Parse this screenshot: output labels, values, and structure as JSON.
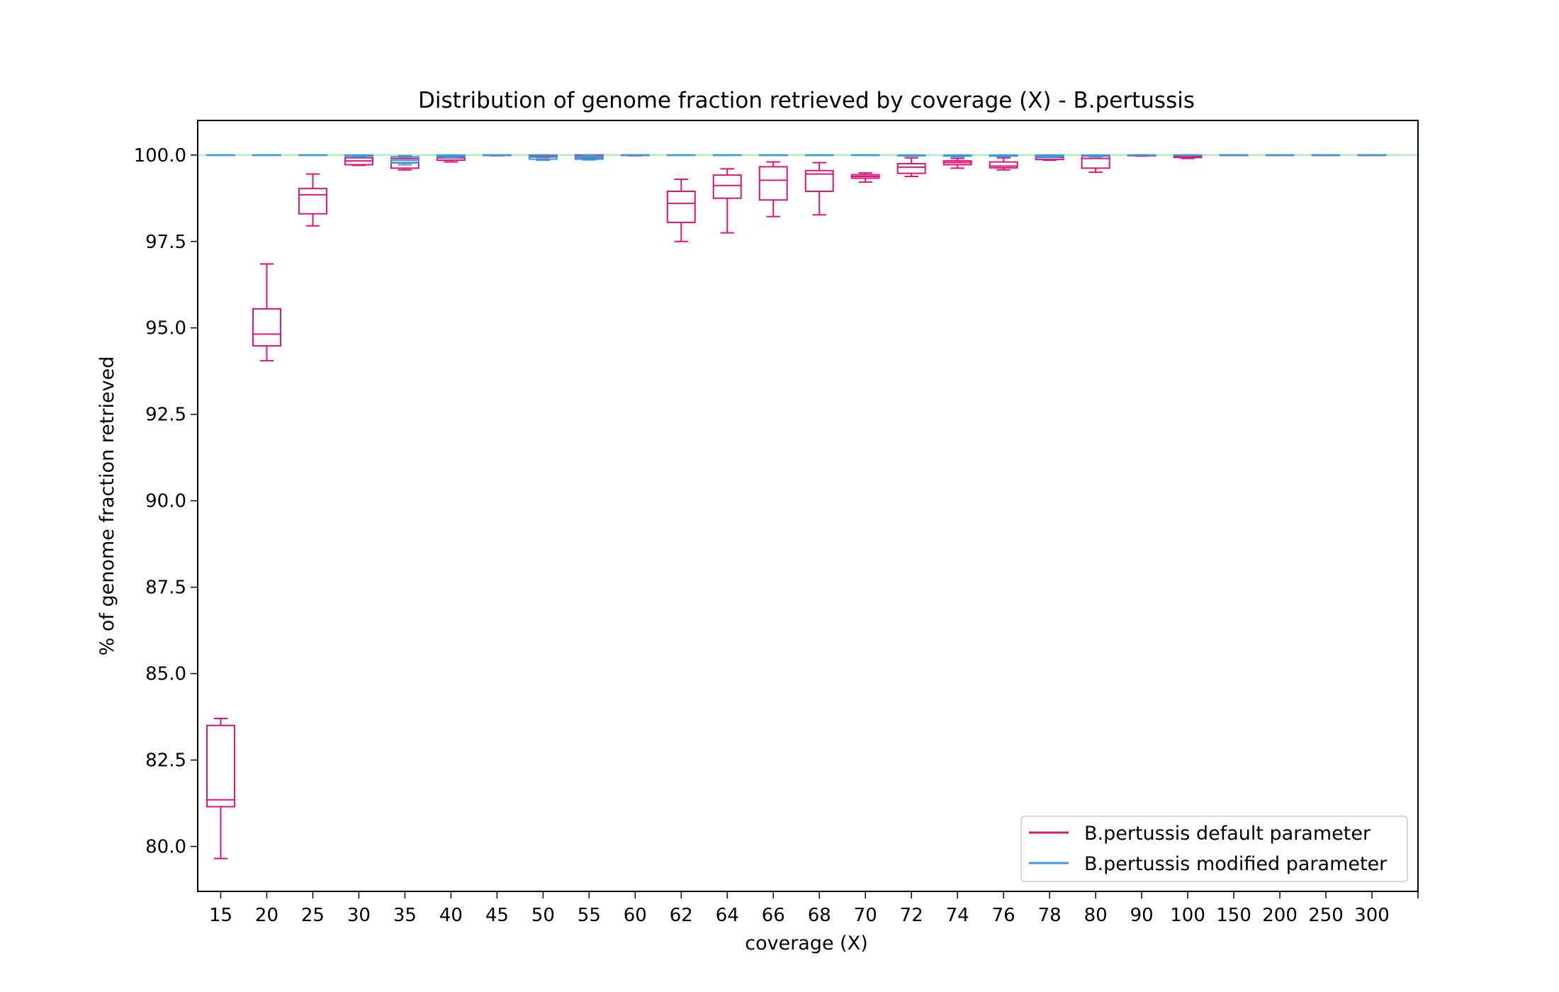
{
  "chart_data": {
    "type": "box",
    "title": "Distribution of genome fraction retrieved by coverage (X) - B.pertussis",
    "xlabel": "coverage (X)",
    "ylabel": "% of genome fraction retrieved",
    "ylim": [
      78.7,
      101.0
    ],
    "yticks": [
      "80.0",
      "82.5",
      "85.0",
      "87.5",
      "90.0",
      "92.5",
      "95.0",
      "97.5",
      "100.0"
    ],
    "yticks_values": [
      80.0,
      82.5,
      85.0,
      87.5,
      90.0,
      92.5,
      95.0,
      97.5,
      100.0
    ],
    "categories": [
      "15",
      "20",
      "25",
      "30",
      "35",
      "40",
      "45",
      "50",
      "55",
      "60",
      "62",
      "64",
      "66",
      "68",
      "70",
      "72",
      "74",
      "76",
      "78",
      "80",
      "90",
      "100",
      "150",
      "200",
      "250",
      "300"
    ],
    "reference_line": {
      "y": 100.0,
      "color": "#90ee90"
    },
    "legend_position": "bottom-right",
    "series": [
      {
        "name": "B.pertussis default parameter",
        "color": "#e0137a",
        "boxes": [
          {
            "min": 79.65,
            "q1": 81.15,
            "median": 81.35,
            "q3": 83.5,
            "max": 83.7
          },
          {
            "min": 94.05,
            "q1": 94.48,
            "median": 94.82,
            "q3": 95.55,
            "max": 96.85
          },
          {
            "min": 97.95,
            "q1": 98.3,
            "median": 98.85,
            "q3": 99.03,
            "max": 99.45
          },
          {
            "min": 99.7,
            "q1": 99.72,
            "median": 99.83,
            "q3": 99.92,
            "max": 99.95
          },
          {
            "min": 99.57,
            "q1": 99.62,
            "median": 99.78,
            "q3": 99.9,
            "max": 99.95
          },
          {
            "min": 99.8,
            "q1": 99.85,
            "median": 99.92,
            "q3": 99.97,
            "max": 99.98
          },
          {
            "min": 99.98,
            "q1": 99.99,
            "median": 100.0,
            "q3": 100.0,
            "max": 100.0
          },
          {
            "min": 99.93,
            "q1": 99.95,
            "median": 99.98,
            "q3": 100.0,
            "max": 100.0
          },
          {
            "min": 99.9,
            "q1": 99.92,
            "median": 99.97,
            "q3": 100.0,
            "max": 100.0
          },
          {
            "min": 99.98,
            "q1": 99.99,
            "median": 100.0,
            "q3": 100.0,
            "max": 100.0
          },
          {
            "min": 97.5,
            "q1": 98.05,
            "median": 98.6,
            "q3": 98.95,
            "max": 99.3
          },
          {
            "min": 97.75,
            "q1": 98.75,
            "median": 99.12,
            "q3": 99.42,
            "max": 99.6
          },
          {
            "min": 98.22,
            "q1": 98.7,
            "median": 99.27,
            "q3": 99.66,
            "max": 99.8
          },
          {
            "min": 98.27,
            "q1": 98.95,
            "median": 99.45,
            "q3": 99.55,
            "max": 99.78
          },
          {
            "min": 99.22,
            "q1": 99.33,
            "median": 99.38,
            "q3": 99.43,
            "max": 99.48
          },
          {
            "min": 99.38,
            "q1": 99.47,
            "median": 99.65,
            "q3": 99.75,
            "max": 99.92
          },
          {
            "min": 99.62,
            "q1": 99.72,
            "median": 99.78,
            "q3": 99.83,
            "max": 99.9
          },
          {
            "min": 99.57,
            "q1": 99.63,
            "median": 99.68,
            "q3": 99.8,
            "max": 99.92
          },
          {
            "min": 99.85,
            "q1": 99.87,
            "median": 99.93,
            "q3": 99.97,
            "max": 99.98
          },
          {
            "min": 99.5,
            "q1": 99.62,
            "median": 99.9,
            "q3": 99.97,
            "max": 99.99
          },
          {
            "min": 99.97,
            "q1": 99.98,
            "median": 99.99,
            "q3": 100.0,
            "max": 100.0
          },
          {
            "min": 99.9,
            "q1": 99.93,
            "median": 99.96,
            "q3": 99.99,
            "max": 100.0
          },
          {
            "min": 99.99,
            "q1": 100.0,
            "median": 100.0,
            "q3": 100.0,
            "max": 100.0
          },
          {
            "min": 99.99,
            "q1": 100.0,
            "median": 100.0,
            "q3": 100.0,
            "max": 100.0
          },
          {
            "min": 99.99,
            "q1": 100.0,
            "median": 100.0,
            "q3": 100.0,
            "max": 100.0
          },
          {
            "min": 99.99,
            "q1": 100.0,
            "median": 100.0,
            "q3": 100.0,
            "max": 100.0
          }
        ]
      },
      {
        "name": "B.pertussis modified parameter",
        "color": "#3a9ad9",
        "boxes": [
          {
            "min": 100.0,
            "q1": 100.0,
            "median": 100.0,
            "q3": 100.0,
            "max": 100.0
          },
          {
            "min": 100.0,
            "q1": 100.0,
            "median": 100.0,
            "q3": 100.0,
            "max": 100.0
          },
          {
            "min": 100.0,
            "q1": 100.0,
            "median": 100.0,
            "q3": 100.0,
            "max": 100.0
          },
          {
            "min": 99.95,
            "q1": 99.97,
            "median": 99.99,
            "q3": 100.0,
            "max": 100.0
          },
          {
            "min": 99.72,
            "q1": 99.77,
            "median": 99.85,
            "q3": 99.95,
            "max": 99.98
          },
          {
            "min": 99.93,
            "q1": 99.95,
            "median": 99.97,
            "q3": 100.0,
            "max": 100.0
          },
          {
            "min": 100.0,
            "q1": 100.0,
            "median": 100.0,
            "q3": 100.0,
            "max": 100.0
          },
          {
            "min": 99.85,
            "q1": 99.88,
            "median": 99.94,
            "q3": 100.0,
            "max": 100.0
          },
          {
            "min": 99.86,
            "q1": 99.88,
            "median": 99.93,
            "q3": 99.97,
            "max": 100.0
          },
          {
            "min": 100.0,
            "q1": 100.0,
            "median": 100.0,
            "q3": 100.0,
            "max": 100.0
          },
          {
            "min": 100.0,
            "q1": 100.0,
            "median": 100.0,
            "q3": 100.0,
            "max": 100.0
          },
          {
            "min": 100.0,
            "q1": 100.0,
            "median": 100.0,
            "q3": 100.0,
            "max": 100.0
          },
          {
            "min": 100.0,
            "q1": 100.0,
            "median": 100.0,
            "q3": 100.0,
            "max": 100.0
          },
          {
            "min": 100.0,
            "q1": 100.0,
            "median": 100.0,
            "q3": 100.0,
            "max": 100.0
          },
          {
            "min": 100.0,
            "q1": 100.0,
            "median": 100.0,
            "q3": 100.0,
            "max": 100.0
          },
          {
            "min": 99.97,
            "q1": 99.98,
            "median": 99.99,
            "q3": 100.0,
            "max": 100.0
          },
          {
            "min": 99.95,
            "q1": 99.97,
            "median": 99.99,
            "q3": 100.0,
            "max": 100.0
          },
          {
            "min": 99.95,
            "q1": 99.97,
            "median": 99.99,
            "q3": 100.0,
            "max": 100.0
          },
          {
            "min": 99.93,
            "q1": 99.95,
            "median": 99.97,
            "q3": 100.0,
            "max": 100.0
          },
          {
            "min": 99.95,
            "q1": 99.97,
            "median": 99.99,
            "q3": 100.0,
            "max": 100.0
          },
          {
            "min": 100.0,
            "q1": 100.0,
            "median": 100.0,
            "q3": 100.0,
            "max": 100.0
          },
          {
            "min": 99.98,
            "q1": 99.99,
            "median": 100.0,
            "q3": 100.0,
            "max": 100.0
          },
          {
            "min": 100.0,
            "q1": 100.0,
            "median": 100.0,
            "q3": 100.0,
            "max": 100.0
          },
          {
            "min": 100.0,
            "q1": 100.0,
            "median": 100.0,
            "q3": 100.0,
            "max": 100.0
          },
          {
            "min": 100.0,
            "q1": 100.0,
            "median": 100.0,
            "q3": 100.0,
            "max": 100.0
          },
          {
            "min": 100.0,
            "q1": 100.0,
            "median": 100.0,
            "q3": 100.0,
            "max": 100.0
          }
        ]
      }
    ]
  }
}
